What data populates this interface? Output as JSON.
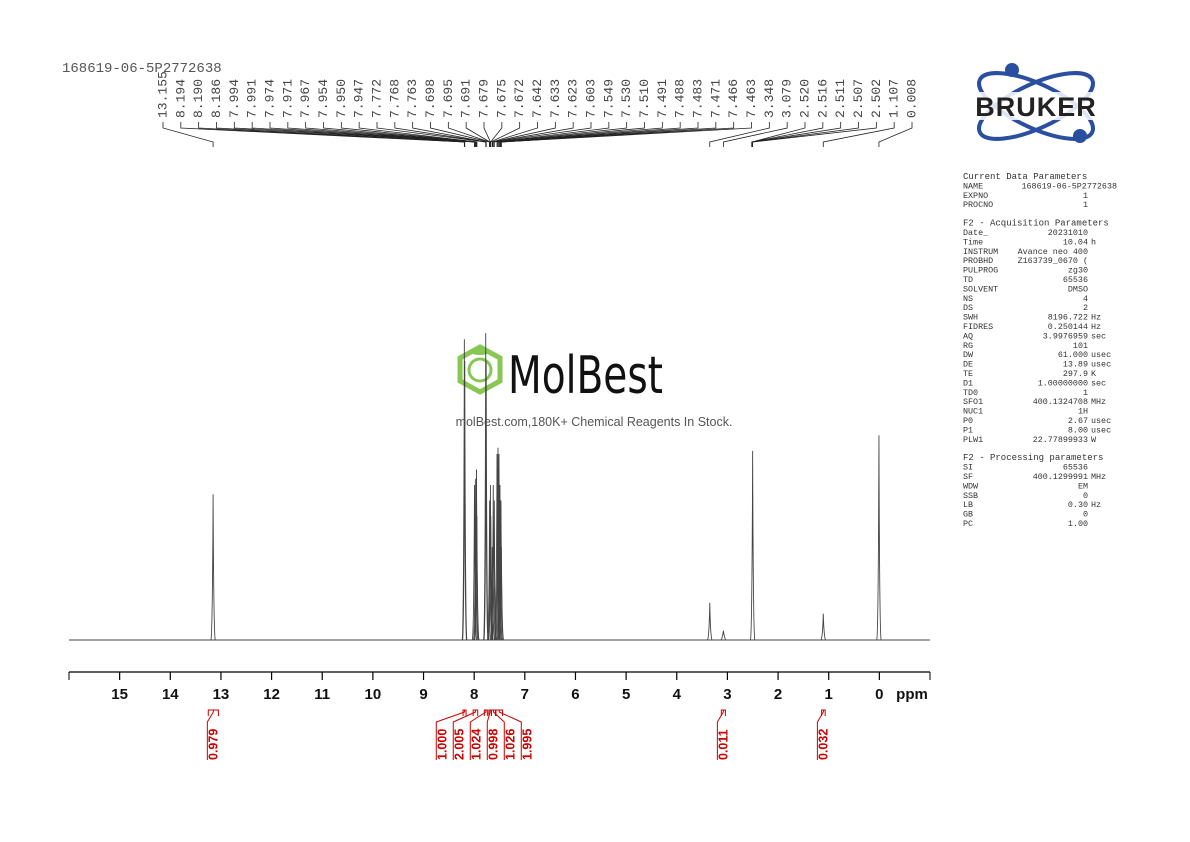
{
  "chart_data": {
    "type": "nmr",
    "title": "168619-06-5P2772638",
    "x_label": "ppm",
    "xlim": [
      16,
      -1
    ],
    "xticks": [
      15,
      14,
      13,
      12,
      11,
      10,
      9,
      8,
      7,
      6,
      5,
      4,
      3,
      2,
      1,
      0
    ],
    "ylim": [
      0,
      1
    ],
    "color": "#444444",
    "peaks": {
      "x": [
        13.155,
        8.194,
        8.186,
        7.994,
        7.971,
        7.954,
        7.947,
        7.772,
        7.763,
        7.695,
        7.679,
        7.672,
        7.642,
        7.623,
        7.603,
        7.549,
        7.53,
        7.51,
        7.491,
        7.471,
        7.463,
        3.348,
        3.079,
        2.502,
        1.107,
        0.008
      ],
      "heights": [
        0.47,
        0.97,
        0.9,
        0.5,
        0.52,
        0.55,
        0.4,
        0.99,
        0.9,
        0.45,
        0.5,
        0.4,
        0.3,
        0.5,
        0.45,
        0.6,
        0.62,
        0.6,
        0.5,
        0.45,
        0.3,
        0.12,
        0.03,
        0.61,
        0.085,
        0.66
      ]
    },
    "peak_labels": [
      {
        "value": 13.155,
        "label": "13.155"
      },
      {
        "value": 8.194,
        "label": "8.194"
      },
      {
        "value": 8.19,
        "label": "8.190"
      },
      {
        "value": 8.186,
        "label": "8.186"
      },
      {
        "value": 7.994,
        "label": "7.994"
      },
      {
        "value": 7.991,
        "label": "7.991"
      },
      {
        "value": 7.974,
        "label": "7.974"
      },
      {
        "value": 7.971,
        "label": "7.971"
      },
      {
        "value": 7.967,
        "label": "7.967"
      },
      {
        "value": 7.954,
        "label": "7.954"
      },
      {
        "value": 7.95,
        "label": "7.950"
      },
      {
        "value": 7.947,
        "label": "7.947"
      },
      {
        "value": 7.772,
        "label": "7.772"
      },
      {
        "value": 7.768,
        "label": "7.768"
      },
      {
        "value": 7.763,
        "label": "7.763"
      },
      {
        "value": 7.698,
        "label": "7.698"
      },
      {
        "value": 7.695,
        "label": "7.695"
      },
      {
        "value": 7.691,
        "label": "7.691"
      },
      {
        "value": 7.679,
        "label": "7.679"
      },
      {
        "value": 7.675,
        "label": "7.675"
      },
      {
        "value": 7.672,
        "label": "7.672"
      },
      {
        "value": 7.642,
        "label": "7.642"
      },
      {
        "value": 7.633,
        "label": "7.633"
      },
      {
        "value": 7.623,
        "label": "7.623"
      },
      {
        "value": 7.603,
        "label": "7.603"
      },
      {
        "value": 7.549,
        "label": "7.549"
      },
      {
        "value": 7.53,
        "label": "7.530"
      },
      {
        "value": 7.51,
        "label": "7.510"
      },
      {
        "value": 7.491,
        "label": "7.491"
      },
      {
        "value": 7.488,
        "label": "7.488"
      },
      {
        "value": 7.483,
        "label": "7.483"
      },
      {
        "value": 7.471,
        "label": "7.471"
      },
      {
        "value": 7.466,
        "label": "7.466"
      },
      {
        "value": 7.463,
        "label": "7.463"
      },
      {
        "value": 3.348,
        "label": "3.348"
      },
      {
        "value": 3.079,
        "label": "3.079"
      },
      {
        "value": 2.52,
        "label": "2.520"
      },
      {
        "value": 2.516,
        "label": "2.516"
      },
      {
        "value": 2.511,
        "label": "2.511"
      },
      {
        "value": 2.507,
        "label": "2.507"
      },
      {
        "value": 2.502,
        "label": "2.502"
      },
      {
        "value": 1.107,
        "label": "1.107"
      },
      {
        "value": 0.008,
        "label": "0.008"
      }
    ],
    "integrals": [
      {
        "x": [
          13.25,
          13.05
        ],
        "value": 0.979,
        "label": "0.979"
      },
      {
        "x": [
          8.22,
          8.16
        ],
        "value": 1.0,
        "label": "1.000"
      },
      {
        "x": [
          8.02,
          7.93
        ],
        "value": 2.005,
        "label": "2.005"
      },
      {
        "x": [
          7.8,
          7.74
        ],
        "value": 1.024,
        "label": "1.024"
      },
      {
        "x": [
          7.71,
          7.66
        ],
        "value": 0.998,
        "label": "0.998"
      },
      {
        "x": [
          7.66,
          7.58
        ],
        "value": 1.026,
        "label": "1.026"
      },
      {
        "x": [
          7.57,
          7.44
        ],
        "value": 1.995,
        "label": "1.995"
      },
      {
        "x": [
          3.12,
          3.04
        ],
        "value": 0.011,
        "label": "0.011"
      },
      {
        "x": [
          1.14,
          1.07
        ],
        "value": 0.032,
        "label": "0.032"
      }
    ],
    "integral_color": "#cc0000"
  },
  "logo": "BRUKER",
  "watermark": {
    "brand": "MolBest",
    "tagline": "molBest.com,180K+ Chemical Reagents In Stock."
  },
  "parameters": [
    {
      "heading": "Current Data Parameters",
      "rows": [
        [
          "NAME",
          "168619-06-5P2772638"
        ],
        [
          "EXPNO",
          "1"
        ],
        [
          "PROCNO",
          "1"
        ]
      ]
    },
    {
      "heading": "F2 - Acquisition Parameters",
      "rows": [
        [
          "Date_",
          "20231010"
        ],
        [
          "Time",
          "10.04",
          "h"
        ],
        [
          "INSTRUM",
          "Avance neo 400"
        ],
        [
          "PROBHD",
          "Z163739_0670 ("
        ],
        [
          "PULPROG",
          "zg30"
        ],
        [
          "TD",
          "65536"
        ],
        [
          "SOLVENT",
          "DMSO"
        ],
        [
          "NS",
          "4"
        ],
        [
          "DS",
          "2"
        ],
        [
          "SWH",
          "8196.722",
          "Hz"
        ],
        [
          "FIDRES",
          "0.250144",
          "Hz"
        ],
        [
          "AQ",
          "3.9976959",
          "sec"
        ],
        [
          "RG",
          "101"
        ],
        [
          "DW",
          "61.000",
          "usec"
        ],
        [
          "DE",
          "13.89",
          "usec"
        ],
        [
          "TE",
          "297.9",
          "K"
        ],
        [
          "D1",
          "1.00000000",
          "sec"
        ],
        [
          "TD0",
          "1"
        ],
        [
          "SFO1",
          "400.1324708",
          "MHz"
        ],
        [
          "NUC1",
          "1H"
        ],
        [
          "P0",
          "2.67",
          "usec"
        ],
        [
          "P1",
          "8.00",
          "usec"
        ],
        [
          "PLW1",
          "22.77899933",
          "W"
        ]
      ]
    },
    {
      "heading": "F2 - Processing parameters",
      "rows": [
        [
          "SI",
          "65536"
        ],
        [
          "SF",
          "400.1299991",
          "MHz"
        ],
        [
          "WDW",
          "EM"
        ],
        [
          "SSB",
          "0"
        ],
        [
          "LB",
          "0.30",
          "Hz"
        ],
        [
          "GB",
          "0"
        ],
        [
          "PC",
          "1.00"
        ]
      ]
    }
  ]
}
